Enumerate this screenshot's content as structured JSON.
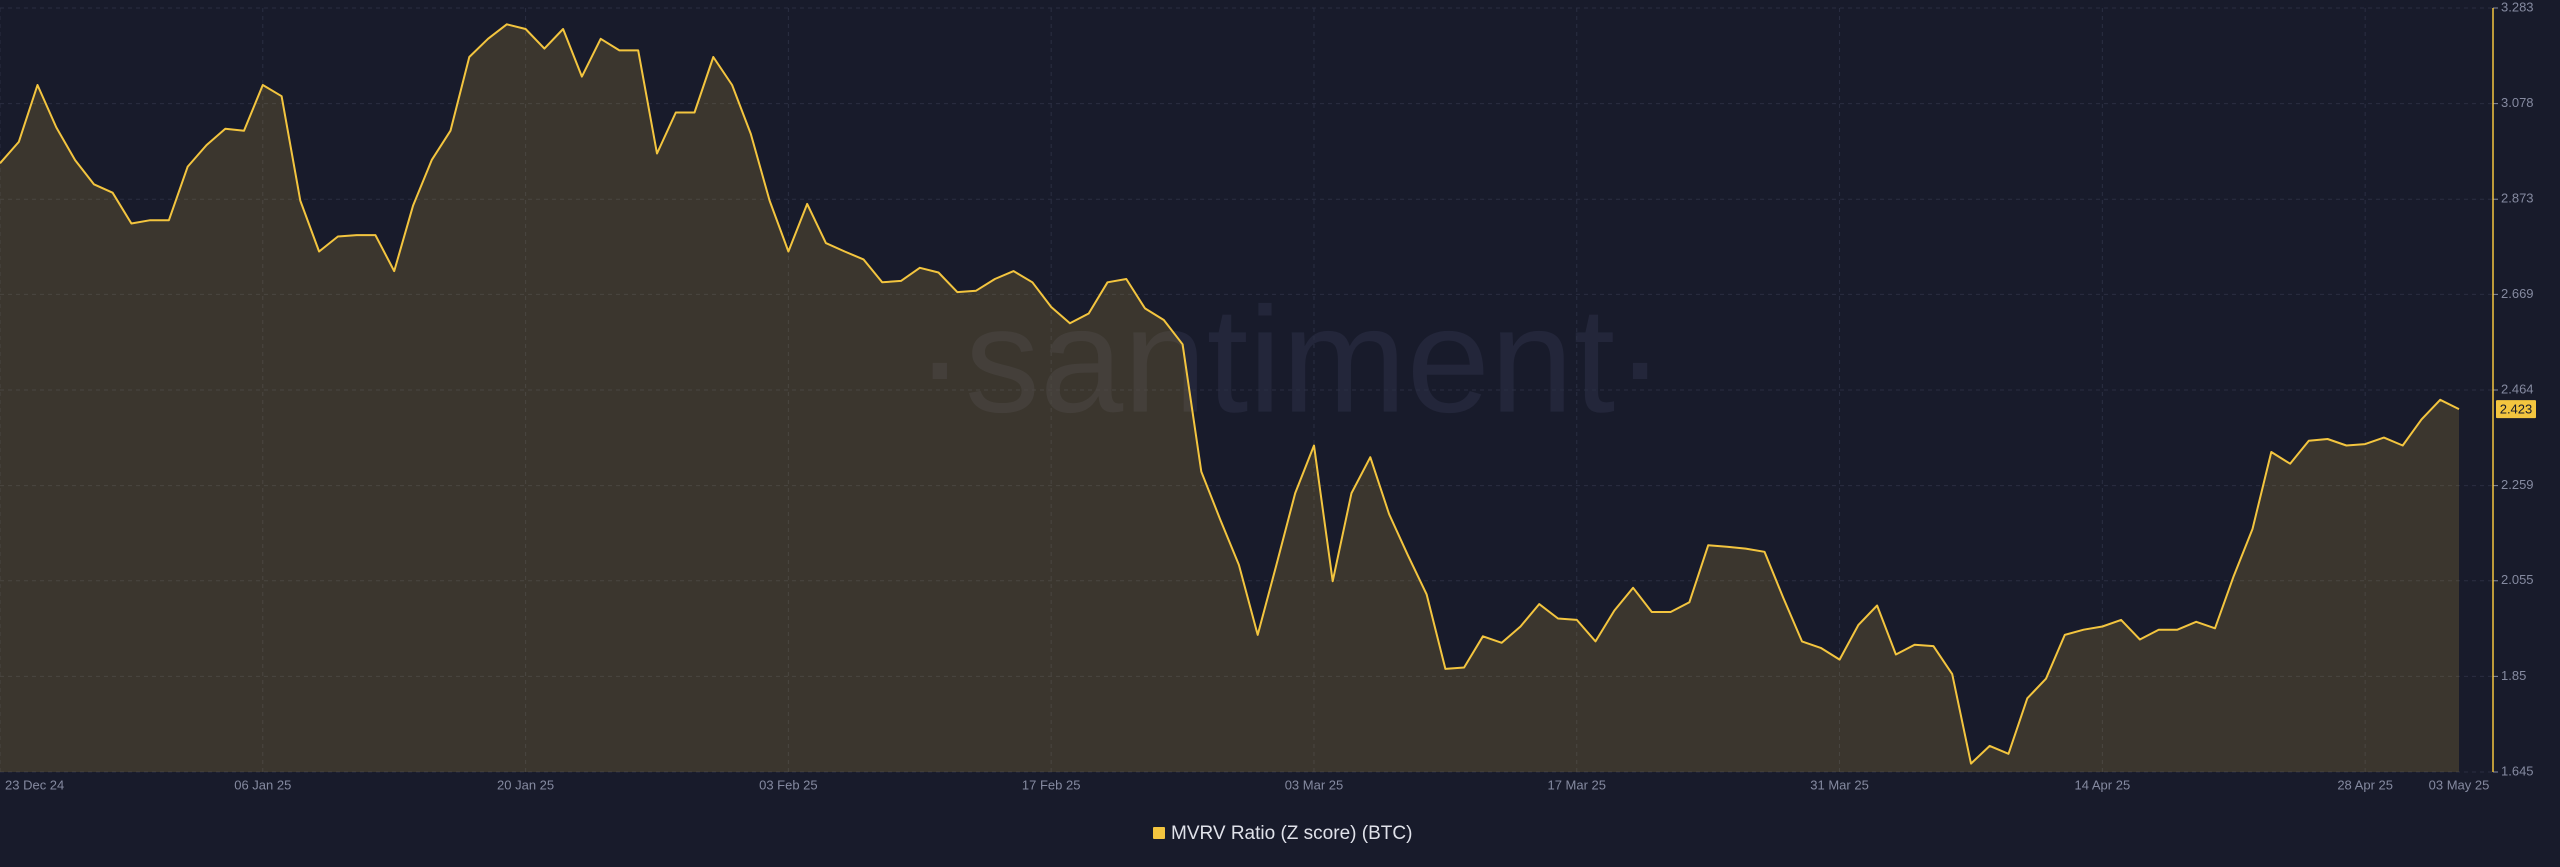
{
  "chart_data": {
    "type": "area",
    "watermark": "·santiment·",
    "categories": [
      "23 Dec 24",
      null,
      null,
      null,
      null,
      null,
      null,
      null,
      null,
      null,
      null,
      null,
      null,
      null,
      "06 Jan 25",
      null,
      null,
      null,
      null,
      null,
      null,
      null,
      null,
      null,
      null,
      null,
      null,
      null,
      "20 Jan 25",
      null,
      null,
      null,
      null,
      null,
      null,
      null,
      null,
      null,
      null,
      null,
      null,
      null,
      "03 Feb 25",
      null,
      null,
      null,
      null,
      null,
      null,
      null,
      null,
      null,
      null,
      null,
      null,
      null,
      "17 Feb 25",
      null,
      null,
      null,
      null,
      null,
      null,
      null,
      null,
      null,
      null,
      null,
      null,
      null,
      "03 Mar 25",
      null,
      null,
      null,
      null,
      null,
      null,
      null,
      null,
      null,
      null,
      null,
      null,
      null,
      "17 Mar 25",
      null,
      null,
      null,
      null,
      null,
      null,
      null,
      null,
      null,
      null,
      null,
      null,
      null,
      "31 Mar 25",
      null,
      null,
      null,
      null,
      null,
      null,
      null,
      null,
      null,
      null,
      null,
      null,
      null,
      "14 Apr 25",
      null,
      null,
      null,
      null,
      null,
      null,
      null,
      null,
      null,
      null,
      null,
      null,
      null,
      "28 Apr 25",
      null,
      null,
      null,
      null,
      "03 May 25"
    ],
    "series": [
      {
        "name": "MVRV Ratio (Z score) (BTC)",
        "color": "#f3c53f",
        "values": [
          2.95,
          2.996,
          3.118,
          3.027,
          2.957,
          2.905,
          2.887,
          2.821,
          2.828,
          2.828,
          2.943,
          2.989,
          3.024,
          3.02,
          3.118,
          3.094,
          2.87,
          2.761,
          2.793,
          2.796,
          2.796,
          2.719,
          2.859,
          2.957,
          3.02,
          3.178,
          3.217,
          3.248,
          3.238,
          3.196,
          3.238,
          3.136,
          3.217,
          3.192,
          3.192,
          2.971,
          3.059,
          3.059,
          3.178,
          3.118,
          3.013,
          2.87,
          2.761,
          2.863,
          2.779,
          2.761,
          2.744,
          2.695,
          2.698,
          2.726,
          2.716,
          2.674,
          2.677,
          2.702,
          2.719,
          2.695,
          2.642,
          2.607,
          2.628,
          2.695,
          2.702,
          2.639,
          2.614,
          2.562,
          2.289,
          2.187,
          2.089,
          1.939,
          2.089,
          2.243,
          2.345,
          2.054,
          2.243,
          2.32,
          2.198,
          2.11,
          2.026,
          1.866,
          1.869,
          1.936,
          1.922,
          1.957,
          2.005,
          1.974,
          1.971,
          1.925,
          1.991,
          2.04,
          1.988,
          1.988,
          2.009,
          2.131,
          2.128,
          2.124,
          2.117,
          2.019,
          1.925,
          1.911,
          1.886,
          1.96,
          2.002,
          1.897,
          1.918,
          1.915,
          1.855,
          1.663,
          1.701,
          1.684,
          1.803,
          1.845,
          1.939,
          1.95,
          1.957,
          1.971,
          1.929,
          1.95,
          1.95,
          1.967,
          1.953,
          2.065,
          2.166,
          2.331,
          2.306,
          2.355,
          2.359,
          2.345,
          2.348,
          2.362,
          2.345,
          2.401,
          2.443,
          2.423
        ]
      }
    ],
    "ylim": [
      1.645,
      3.283
    ],
    "yticks": [
      1.645,
      1.85,
      2.055,
      2.259,
      2.464,
      2.669,
      2.873,
      3.078,
      3.283
    ],
    "grid": true
  }
}
